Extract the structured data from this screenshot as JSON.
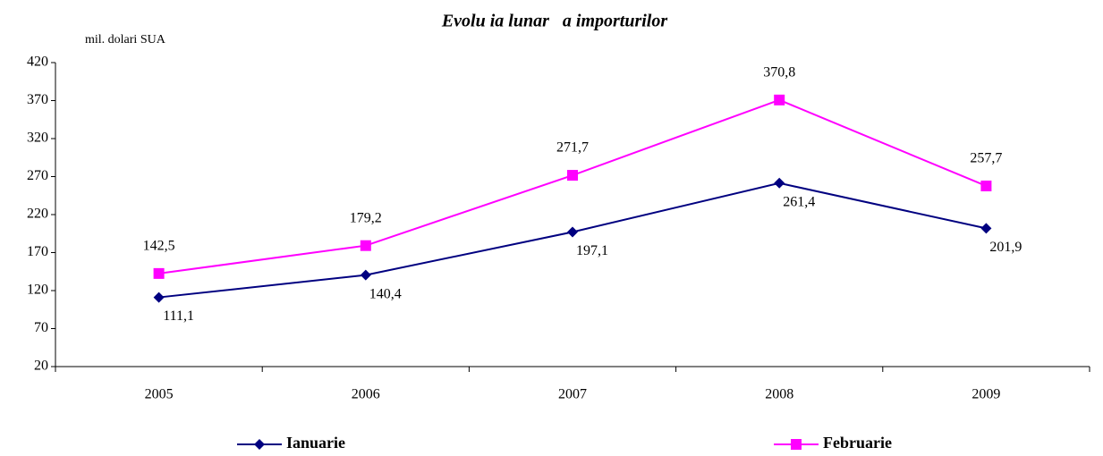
{
  "chart_data": {
    "type": "line",
    "title": "Evolu ia lunar   a importurilor",
    "y_label": "mil. dolari SUA",
    "categories": [
      "2005",
      "2006",
      "2007",
      "2008",
      "2009"
    ],
    "series": [
      {
        "name": "Ianuarie",
        "color": "#000080",
        "marker": "diamond",
        "values": [
          111.1,
          140.4,
          197.1,
          261.4,
          201.9
        ],
        "value_labels": [
          "111,1",
          "140,4",
          "197,1",
          "261,4",
          "201,9"
        ]
      },
      {
        "name": "Februarie",
        "color": "#ff00ff",
        "marker": "square",
        "values": [
          142.5,
          179.2,
          271.7,
          370.8,
          257.7
        ],
        "value_labels": [
          "142,5",
          "179,2",
          "271,7",
          "370,8",
          "257,7"
        ]
      }
    ],
    "ylim": [
      20,
      420
    ],
    "yticks": [
      20,
      70,
      120,
      170,
      220,
      270,
      320,
      370,
      420
    ],
    "grid": false,
    "legend": "bottom"
  }
}
